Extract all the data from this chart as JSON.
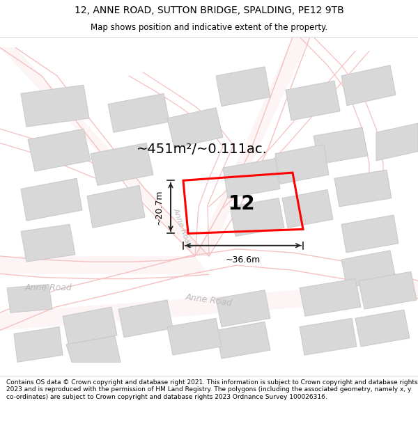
{
  "title_line1": "12, ANNE ROAD, SUTTON BRIDGE, SPALDING, PE12 9TB",
  "title_line2": "Map shows position and indicative extent of the property.",
  "footer_text": "Contains OS data © Crown copyright and database right 2021. This information is subject to Crown copyright and database rights 2023 and is reproduced with the permission of HM Land Registry. The polygons (including the associated geometry, namely x, y co-ordinates) are subject to Crown copyright and database rights 2023 Ordnance Survey 100026316.",
  "area_text": "~451m²/~0.111ac.",
  "label_number": "12",
  "dim_width": "~36.6m",
  "dim_height": "~20.7m",
  "map_bg": "#faf7f7",
  "road_color": "#f5c0c0",
  "building_fill": "#d8d8d8",
  "building_edge": "#c8c8c8",
  "prop_color": "#ff0000",
  "road_label_color": "#bbbbbb",
  "dim_color": "#222222",
  "title_fontsize": 10,
  "subtitle_fontsize": 8.5,
  "footer_fontsize": 6.5,
  "area_fontsize": 14,
  "num_fontsize": 20,
  "dim_fontsize": 9,
  "road_lw": 1.0,
  "prop_lw": 2.2
}
